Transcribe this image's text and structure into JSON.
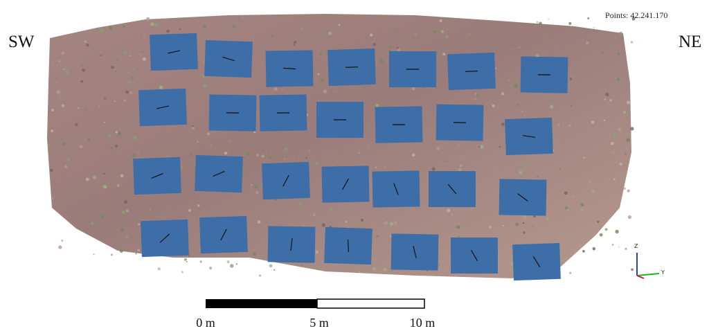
{
  "viewer": {
    "point_count": "Points: 42.241.170",
    "left_direction": "SW",
    "right_direction": "NE"
  },
  "scale_bar": {
    "labels": [
      "0 m",
      "5 m",
      "10 m"
    ]
  },
  "axes_gizmo": {
    "z": "Z",
    "y": "Y"
  }
}
